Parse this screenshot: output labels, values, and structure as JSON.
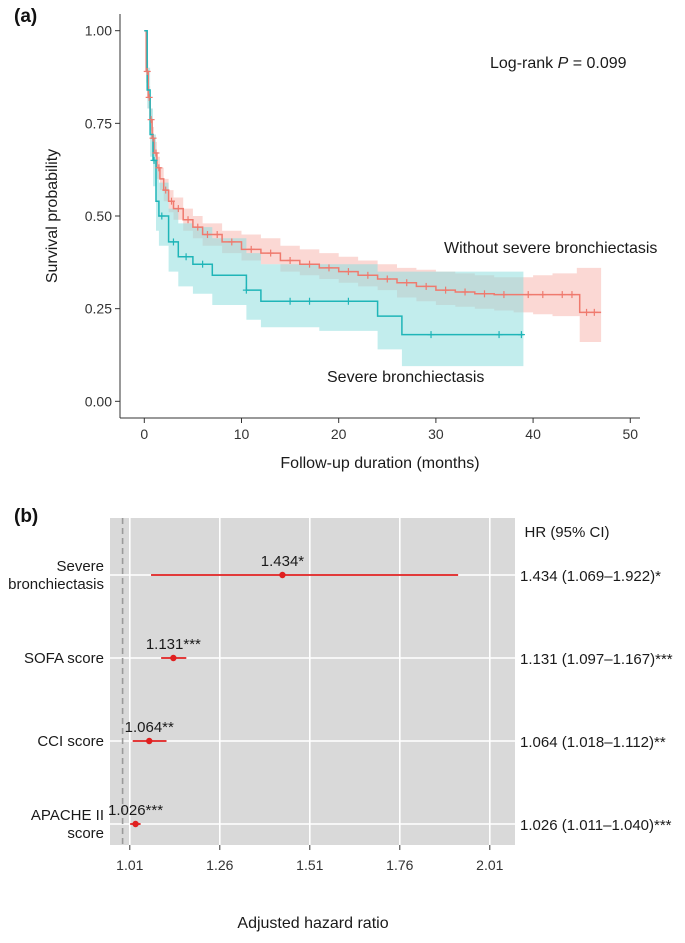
{
  "chart_data": [
    {
      "panel": "(a)",
      "type": "line",
      "subtype": "kaplan-meier",
      "title": "",
      "xlabel": "Follow-up duration (months)",
      "ylabel": "Survival probability",
      "xlim": [
        -2.5,
        51
      ],
      "ylim": [
        -0.045,
        1.045
      ],
      "xticks": [
        "0",
        "10",
        "20",
        "30",
        "40",
        "50"
      ],
      "xtick_values": [
        0,
        10,
        20,
        30,
        40,
        50
      ],
      "yticks": [
        "0.00",
        "0.25",
        "0.50",
        "0.75",
        "1.00"
      ],
      "ytick_values": [
        0,
        0.25,
        0.5,
        0.75,
        1
      ],
      "annotation": {
        "prefix": "Log-rank ",
        "italic": "P",
        "suffix": " = 0.099"
      },
      "series": [
        {
          "name": "Without severe bronchiectasis",
          "color": "#ef7a6e",
          "band_color": "#f7b8b1",
          "x": [
            0,
            0.2,
            0.4,
            0.6,
            0.8,
            1.0,
            1.3,
            1.6,
            2.0,
            2.5,
            3.0,
            4.0,
            5.0,
            6.0,
            8.0,
            10.0,
            12.0,
            14.0,
            16.0,
            18.0,
            20.0,
            22.0,
            24.0,
            26.0,
            28.0,
            30.0,
            32.0,
            34.0,
            36.0,
            38.0,
            40.0,
            42.0,
            44.5,
            44.8,
            47.0
          ],
          "y": [
            1.0,
            0.89,
            0.82,
            0.76,
            0.71,
            0.67,
            0.63,
            0.6,
            0.57,
            0.54,
            0.52,
            0.49,
            0.47,
            0.45,
            0.43,
            0.41,
            0.4,
            0.38,
            0.37,
            0.36,
            0.35,
            0.34,
            0.33,
            0.32,
            0.31,
            0.3,
            0.295,
            0.29,
            0.288,
            0.288,
            0.288,
            0.288,
            0.288,
            0.24,
            0.24
          ],
          "lower": [
            1.0,
            0.86,
            0.79,
            0.73,
            0.68,
            0.64,
            0.6,
            0.57,
            0.54,
            0.51,
            0.49,
            0.46,
            0.44,
            0.42,
            0.4,
            0.38,
            0.37,
            0.35,
            0.34,
            0.33,
            0.32,
            0.31,
            0.3,
            0.28,
            0.27,
            0.26,
            0.255,
            0.25,
            0.245,
            0.24,
            0.235,
            0.23,
            0.23,
            0.16,
            0.16
          ],
          "upper": [
            1.0,
            0.92,
            0.85,
            0.79,
            0.74,
            0.7,
            0.66,
            0.63,
            0.6,
            0.57,
            0.55,
            0.52,
            0.5,
            0.48,
            0.46,
            0.45,
            0.44,
            0.42,
            0.41,
            0.4,
            0.39,
            0.38,
            0.37,
            0.36,
            0.355,
            0.35,
            0.345,
            0.34,
            0.335,
            0.335,
            0.34,
            0.345,
            0.36,
            0.36,
            0.36
          ],
          "censor_x": [
            0.3,
            0.5,
            0.7,
            0.9,
            1.2,
            1.5,
            2.2,
            2.8,
            3.5,
            4.5,
            5.5,
            6.5,
            7.5,
            9.0,
            11.0,
            13.0,
            15.0,
            17.0,
            19.0,
            21.0,
            23.0,
            25.0,
            27.0,
            29.0,
            31.0,
            33.0,
            35.0,
            37.0,
            39.5,
            41.0,
            43.0,
            44.0,
            45.5,
            46.3
          ]
        },
        {
          "name": "Severe bronchiectasis",
          "color": "#1fb5b8",
          "band_color": "#8fdfdf",
          "x": [
            0,
            0.3,
            0.6,
            0.9,
            1.2,
            1.5,
            2.5,
            3.5,
            5.0,
            7.0,
            10.5,
            12.0,
            18.0,
            24.0,
            26.5,
            39.0
          ],
          "y": [
            1.0,
            0.84,
            0.72,
            0.65,
            0.54,
            0.5,
            0.43,
            0.39,
            0.37,
            0.34,
            0.3,
            0.27,
            0.27,
            0.23,
            0.18,
            0.18
          ],
          "lower": [
            1.0,
            0.79,
            0.66,
            0.58,
            0.46,
            0.42,
            0.35,
            0.31,
            0.29,
            0.26,
            0.22,
            0.2,
            0.19,
            0.14,
            0.095,
            0.095
          ],
          "upper": [
            1.0,
            0.9,
            0.79,
            0.72,
            0.63,
            0.59,
            0.52,
            0.48,
            0.47,
            0.44,
            0.4,
            0.37,
            0.37,
            0.35,
            0.35,
            0.35
          ],
          "censor_x": [
            1.0,
            1.8,
            3.0,
            4.3,
            6.0,
            10.5,
            15.0,
            17.0,
            21.0,
            29.5,
            36.5,
            38.8
          ]
        }
      ]
    },
    {
      "panel": "(b)",
      "type": "forest",
      "title": "",
      "xlabel": "Adjusted hazard ratio",
      "ylabel": "",
      "xlim": [
        0.955,
        2.08
      ],
      "reference_line": 0.99,
      "xticks": [
        "1.01",
        "1.26",
        "1.51",
        "1.76",
        "2.01"
      ],
      "xtick_values": [
        1.01,
        1.26,
        1.51,
        1.76,
        2.01
      ],
      "ci_header": "HR (95% CI)",
      "point_color": "#e02020",
      "rows": [
        {
          "label": [
            "Severe",
            "bronchiectasis"
          ],
          "hr": 1.434,
          "lo": 1.069,
          "hi": 1.922,
          "point_label": "1.434*",
          "ci_text": "1.434 (1.069–1.922)*"
        },
        {
          "label": [
            "SOFA score"
          ],
          "hr": 1.131,
          "lo": 1.097,
          "hi": 1.167,
          "point_label": "1.131***",
          "ci_text": "1.131 (1.097–1.167)***"
        },
        {
          "label": [
            "CCI score"
          ],
          "hr": 1.064,
          "lo": 1.018,
          "hi": 1.112,
          "point_label": "1.064**",
          "ci_text": "1.064 (1.018–1.112)**"
        },
        {
          "label": [
            "APACHE II",
            "score"
          ],
          "hr": 1.026,
          "lo": 1.011,
          "hi": 1.04,
          "point_label": "1.026***",
          "ci_text": "1.026 (1.011–1.040)***"
        }
      ]
    }
  ]
}
